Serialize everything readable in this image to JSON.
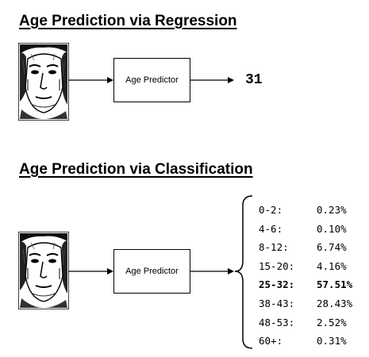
{
  "regression": {
    "title": "Age Prediction via Regression",
    "predictor_label": "Age Predictor",
    "output": "31"
  },
  "classification": {
    "title": "Age Prediction via Classification",
    "predictor_label": "Age Predictor",
    "classes": [
      {
        "range": "0-2:",
        "prob": "0.23%"
      },
      {
        "range": "4-6:",
        "prob": "0.10%"
      },
      {
        "range": "8-12:",
        "prob": "6.74%"
      },
      {
        "range": "15-20:",
        "prob": "4.16%"
      },
      {
        "range": "25-32:",
        "prob": "57.51%"
      },
      {
        "range": "38-43:",
        "prob": "28.43%"
      },
      {
        "range": "48-53:",
        "prob": "2.52%"
      },
      {
        "range": "60+:",
        "prob": "0.31%"
      }
    ],
    "highlighted_index": 4
  },
  "icons": {
    "face_image": "face-photo-icon",
    "arrow": "right-arrow-icon",
    "brace": "left-curly-brace-icon"
  }
}
